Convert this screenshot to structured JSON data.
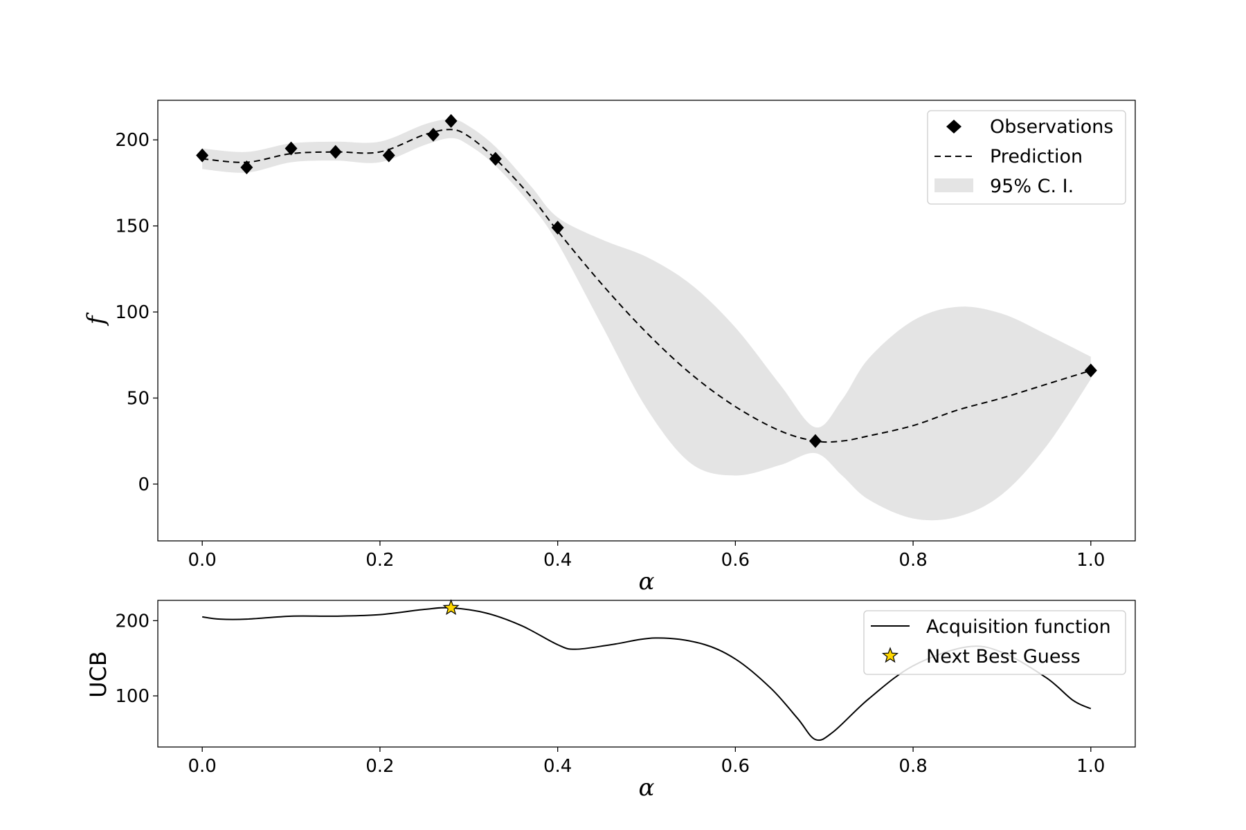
{
  "chart_data": [
    {
      "type": "line",
      "xlabel": "α",
      "ylabel": "f",
      "xlim": [
        -0.05,
        1.05
      ],
      "ylim": [
        -33,
        223
      ],
      "xticks": [
        0.0,
        0.2,
        0.4,
        0.6,
        0.8,
        1.0
      ],
      "xtick_labels": [
        "0.0",
        "0.2",
        "0.4",
        "0.6",
        "0.8",
        "1.0"
      ],
      "yticks": [
        0,
        50,
        100,
        150,
        200
      ],
      "ytick_labels": [
        "0",
        "50",
        "100",
        "150",
        "200"
      ],
      "grid": false,
      "legend_position": "top-right",
      "legend": {
        "observations": "Observations",
        "prediction": "Prediction",
        "ci": "95% C. I."
      },
      "observations": {
        "x": [
          0.0,
          0.05,
          0.1,
          0.15,
          0.21,
          0.26,
          0.28,
          0.33,
          0.4,
          0.69,
          1.0
        ],
        "y": [
          191,
          184,
          195,
          193,
          191,
          203,
          211,
          189,
          149,
          25,
          66
        ]
      },
      "prediction": {
        "x": [
          0.0,
          0.05,
          0.1,
          0.15,
          0.2,
          0.25,
          0.28,
          0.3,
          0.33,
          0.37,
          0.4,
          0.45,
          0.5,
          0.55,
          0.6,
          0.65,
          0.69,
          0.72,
          0.75,
          0.8,
          0.85,
          0.9,
          0.95,
          1.0
        ],
        "y": [
          189,
          187,
          192,
          193,
          193,
          203,
          206,
          202,
          189,
          167,
          147,
          116,
          88,
          64,
          45,
          31,
          25,
          25,
          28,
          34,
          43,
          50,
          58,
          66
        ]
      },
      "ci": {
        "x": [
          0.0,
          0.05,
          0.1,
          0.15,
          0.2,
          0.25,
          0.28,
          0.3,
          0.33,
          0.37,
          0.4,
          0.45,
          0.5,
          0.55,
          0.6,
          0.65,
          0.69,
          0.72,
          0.75,
          0.8,
          0.85,
          0.9,
          0.95,
          1.0
        ],
        "upper": [
          195,
          193,
          198,
          199,
          199,
          209,
          212,
          208,
          196,
          173,
          155,
          142,
          132,
          116,
          91,
          58,
          33,
          49,
          73,
          95,
          103,
          99,
          87,
          74
        ],
        "lower": [
          183,
          181,
          187,
          188,
          187,
          197,
          201,
          197,
          185,
          162,
          140,
          92,
          44,
          12,
          5,
          11,
          18,
          5,
          -9,
          -20,
          -19,
          -6,
          22,
          61
        ]
      }
    },
    {
      "type": "line",
      "xlabel": "α",
      "ylabel": "UCB",
      "xlim": [
        -0.05,
        1.05
      ],
      "ylim": [
        32,
        227
      ],
      "xticks": [
        0.0,
        0.2,
        0.4,
        0.6,
        0.8,
        1.0
      ],
      "xtick_labels": [
        "0.0",
        "0.2",
        "0.4",
        "0.6",
        "0.8",
        "1.0"
      ],
      "yticks": [
        100,
        200
      ],
      "ytick_labels": [
        "100",
        "200"
      ],
      "grid": false,
      "legend_position": "top-right",
      "legend": {
        "acquisition": "Acquisition function",
        "best": "Next Best Guess"
      },
      "acquisition": {
        "x": [
          0.0,
          0.02,
          0.05,
          0.1,
          0.15,
          0.2,
          0.25,
          0.28,
          0.32,
          0.36,
          0.4,
          0.42,
          0.46,
          0.51,
          0.56,
          0.6,
          0.64,
          0.67,
          0.69,
          0.71,
          0.75,
          0.8,
          0.86,
          0.9,
          0.95,
          0.98,
          1.0
        ],
        "y": [
          205,
          202,
          202,
          206,
          206,
          208,
          215,
          217,
          210,
          193,
          168,
          162,
          168,
          177,
          170,
          149,
          110,
          70,
          42,
          52,
          96,
          140,
          165,
          158,
          124,
          94,
          83
        ]
      },
      "best_guess": {
        "x": 0.28,
        "y": 217
      }
    }
  ],
  "colors": {
    "axis": "#000000",
    "markers": "#000000",
    "ci_fill": "#e4e4e4",
    "star_fill": "#ffd700"
  }
}
